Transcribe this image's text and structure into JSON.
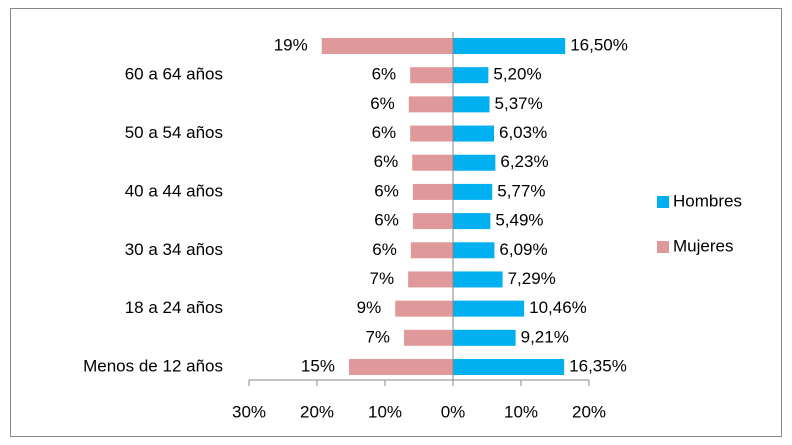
{
  "chart_data": {
    "type": "hbar_pyramid",
    "categories": [
      "Menos de 12 años",
      null,
      "18 a 24 años",
      null,
      "30 a 34 años",
      null,
      "40 a 44 años",
      null,
      "50 a 54 años",
      null,
      "60 a 64 años",
      null
    ],
    "series": [
      {
        "name": "Hombres",
        "color": "#00b0f0",
        "values": [
          16.35,
          9.21,
          10.46,
          7.29,
          6.09,
          5.49,
          5.77,
          6.23,
          6.03,
          5.37,
          5.2,
          16.5
        ],
        "value_labels": [
          "16,35%",
          "9,21%",
          "10,46%",
          "7,29%",
          "6,09%",
          "5,49%",
          "5,77%",
          "6,23%",
          "6,03%",
          "5,37%",
          "5,20%",
          "16,50%"
        ]
      },
      {
        "name": "Mujeres",
        "color": "#e0999a",
        "values": [
          -15.3,
          -7.2,
          -8.5,
          -6.6,
          -6.2,
          -5.9,
          -5.9,
          -6.0,
          -6.3,
          -6.5,
          -6.3,
          -19.3
        ],
        "value_labels": [
          "15%",
          "7%",
          "9%",
          "7%",
          "6%",
          "6%",
          "6%",
          "6%",
          "6%",
          "6%",
          "6%",
          "19%"
        ]
      }
    ],
    "xlim": [
      -30,
      20
    ],
    "xticks": [
      {
        "value": -30,
        "label": "30%"
      },
      {
        "value": -20,
        "label": "20%"
      },
      {
        "value": -10,
        "label": "10%"
      },
      {
        "value": 0,
        "label": "0%"
      },
      {
        "value": 10,
        "label": "10%"
      },
      {
        "value": 20,
        "label": "20%"
      }
    ],
    "legend": "right"
  }
}
